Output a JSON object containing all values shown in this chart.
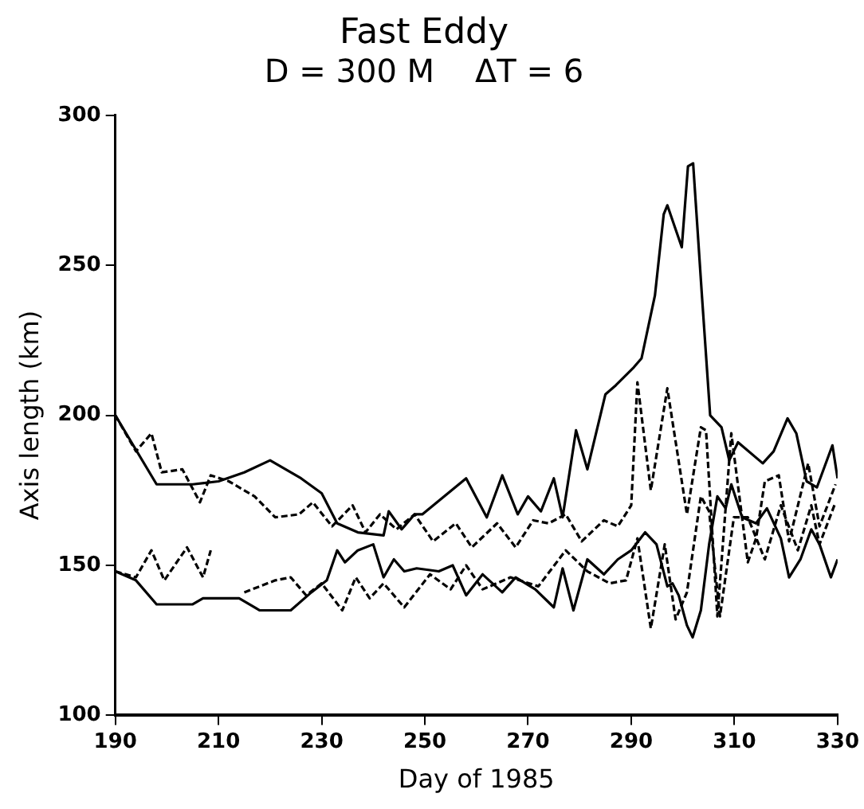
{
  "chart_data": {
    "type": "line",
    "title": "Fast Eddy",
    "subtitle": "D = 300 M    ΔT = 6",
    "xlabel": "Day of 1985",
    "ylabel": "Axis length (km)",
    "xlim": [
      190,
      330
    ],
    "xticks": [
      190,
      210,
      230,
      250,
      270,
      290,
      310,
      330
    ],
    "ylim": [
      100,
      300
    ],
    "yticks": [
      100,
      150,
      200,
      250,
      300
    ],
    "grid": false,
    "legend": false,
    "marker": "none",
    "series": [
      {
        "color": "#000000",
        "line_style": "solid",
        "x": [
          190,
          198,
          205,
          210,
          215,
          220,
          226,
          230,
          233,
          237,
          242,
          243,
          245.5,
          248,
          249.5,
          258,
          262,
          265,
          268,
          270,
          272.5,
          275,
          276.7,
          279.3,
          281.5,
          285,
          287,
          290.5,
          292,
          294.6,
          296.3,
          297,
          299.8,
          301,
          302,
          303.7,
          305.3,
          307.5,
          309,
          310.7,
          315.5,
          317.6,
          320.3,
          322,
          324,
          326,
          329,
          330
        ],
        "values": [
          200,
          177,
          177,
          178,
          181,
          185,
          179,
          174,
          164,
          161,
          160,
          168,
          162,
          167,
          167,
          179,
          166,
          180,
          167,
          173,
          168,
          179,
          166,
          195,
          182,
          207,
          210,
          216,
          219,
          240,
          267,
          270,
          256,
          283,
          284,
          240,
          200,
          196,
          185,
          191,
          184,
          188,
          199,
          194,
          178,
          176,
          190,
          179
        ]
      },
      {
        "color": "#000000",
        "line_style": "solid",
        "x": [
          190,
          194,
          198,
          205,
          207,
          214,
          218,
          224,
          228,
          231,
          233,
          234.5,
          237,
          240,
          242,
          244,
          246,
          248.4,
          252.7,
          255.4,
          258,
          261.2,
          265,
          267.6,
          271.4,
          275,
          276.7,
          278.8,
          281.5,
          284.7,
          287.4,
          290,
          292.7,
          294.9,
          297,
          298,
          299.2,
          300.8,
          301.9,
          303.5,
          305.1,
          306.7,
          308.3,
          309.4,
          311.5,
          314.2,
          316.3,
          319,
          320.6,
          322.8,
          324.9,
          326.5,
          328.7,
          330
        ],
        "values": [
          148,
          145,
          137,
          137,
          139,
          139,
          135,
          135,
          141,
          145,
          155,
          151,
          155,
          157,
          146,
          152,
          148,
          149,
          148,
          150,
          140,
          147,
          141,
          146,
          142,
          136,
          149,
          135,
          152,
          147,
          152,
          155,
          161,
          157,
          143,
          144,
          140,
          130,
          126,
          135,
          157,
          173,
          169,
          177,
          166,
          164,
          169,
          159,
          146,
          152,
          162,
          157,
          146,
          152
        ]
      },
      {
        "color": "#000000",
        "line_style": "dashed",
        "x": [
          190,
          194,
          197,
          199,
          203,
          206.4,
          208.5,
          212,
          217,
          221,
          225.6,
          228.3,
          232,
          236,
          238.5,
          241.3,
          244.5,
          248,
          251.6,
          256,
          259.1,
          264,
          267.6,
          271,
          274,
          277.3,
          280.4,
          284.7,
          287.4,
          290,
          291.2,
          293.8,
          297,
          300.8,
          303.5,
          304.5,
          306.7,
          309.4,
          312.6,
          314.2,
          315.9,
          318.6,
          320.6,
          324.3,
          326.5,
          329.6
        ],
        "values": [
          200,
          188,
          194,
          181,
          182,
          171,
          180,
          178,
          173,
          166,
          167,
          171,
          163,
          170,
          161,
          167,
          162,
          167,
          158,
          164,
          156,
          164,
          156,
          165,
          164,
          167,
          158,
          165,
          163,
          170,
          211,
          175,
          209,
          167,
          196,
          195,
          133,
          194,
          151,
          159,
          178,
          180,
          158,
          184,
          163,
          177
        ]
      },
      {
        "color": "#000000",
        "line_style": "dashed",
        "x": [
          190,
          194,
          197,
          199.5,
          203.9,
          207,
          208.5,
          212,
          215,
          221,
          224,
          227,
          230,
          234,
          236.6,
          239.3,
          242,
          246,
          251,
          255,
          258,
          261.2,
          266.6,
          272,
          277.3,
          281.5,
          285.8,
          289,
          291.2,
          293.8,
          296.5,
          298.6,
          300.8,
          303.5,
          305.1,
          307.2,
          309.9,
          312.6,
          315.9,
          319,
          322.3,
          324.9,
          326.5,
          329.6
        ],
        "values": [
          148,
          146,
          155,
          145,
          156,
          146,
          155,
          null,
          141,
          145,
          146,
          140,
          144,
          135,
          146,
          139,
          144,
          136,
          147,
          142,
          150,
          142,
          146,
          143,
          155,
          148,
          144,
          145,
          159,
          129,
          157,
          132,
          141,
          173,
          168,
          133,
          166,
          166,
          152,
          170,
          155,
          170,
          157,
          171
        ]
      }
    ]
  }
}
